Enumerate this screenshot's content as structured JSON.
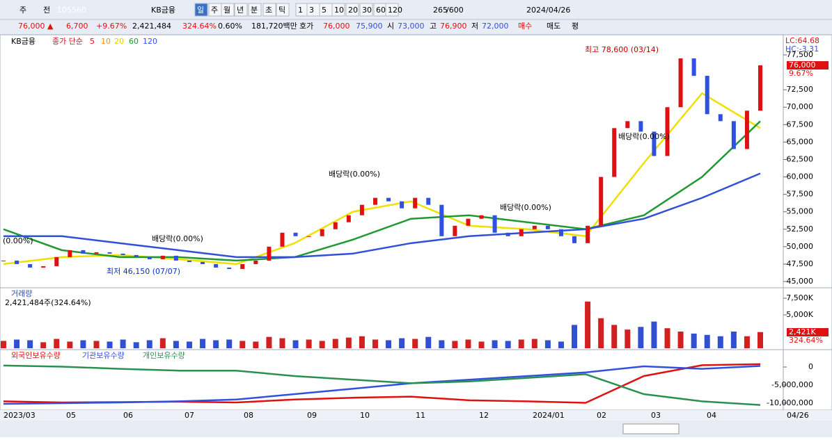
{
  "toolbar": {
    "items": [
      "주",
      "전",
      "105560",
      "KB금융",
      "일",
      "주",
      "월",
      "년",
      "분",
      "초",
      "틱",
      "1",
      "3",
      "5",
      "10",
      "20",
      "30",
      "60",
      "120",
      "265",
      "/600",
      "2024/04/26"
    ]
  },
  "info": {
    "items": [
      "76,000 ▲",
      "6,700",
      "+9.67%",
      "2,421,484",
      "324.64%",
      "0.60%",
      "181,720백만",
      "호가",
      "76,000",
      "75,900",
      "시",
      "73,000",
      "고",
      "76,900",
      "저",
      "72,000",
      "매수",
      "매도",
      "평"
    ]
  },
  "legend": {
    "items": [
      "KB금융",
      "종가 단순",
      "5",
      "10",
      "20",
      "60",
      "120"
    ]
  },
  "chart_data": [
    {
      "type": "candle",
      "name": "price",
      "values": [
        48000,
        47500,
        47000,
        47200,
        48500,
        49500,
        49000,
        49200,
        49000,
        48800,
        48500,
        48200,
        48700,
        48000,
        47800,
        47500,
        47000,
        46800,
        47500,
        48000,
        50000,
        52000,
        51500,
        51500,
        52500,
        53500,
        54500,
        56000,
        57000,
        56500,
        55500,
        57000,
        56000,
        51500,
        53000,
        54000,
        54500,
        52000,
        51500,
        52500,
        53000,
        52500,
        51500,
        50500,
        53000,
        60000,
        67000,
        68000,
        66500,
        63000,
        70000,
        77000,
        74500,
        69000,
        68000,
        64000,
        69500,
        76000
      ],
      "series": [
        {
          "name": "20",
          "color": "#f0e000",
          "values": [
            47500,
            48500,
            48800,
            48200,
            47500,
            50500,
            55000,
            56500,
            53000,
            52500,
            51500,
            62000,
            72000,
            67000
          ]
        },
        {
          "name": "60",
          "color": "#1e9a2e",
          "values": [
            52500,
            49500,
            48500,
            48500,
            48000,
            48500,
            51000,
            54000,
            54500,
            53500,
            52500,
            54500,
            60000,
            68000
          ]
        },
        {
          "name": "120",
          "color": "#3050d8",
          "values": [
            51500,
            51500,
            50500,
            49500,
            48500,
            48500,
            49000,
            50500,
            51500,
            52000,
            52500,
            54000,
            57000,
            60500
          ]
        }
      ],
      "ylim": [
        45000,
        77500
      ],
      "yticks": [
        {
          "value": 45000,
          "label": "45,000"
        },
        {
          "value": 47500,
          "label": "47,500"
        },
        {
          "value": 50000,
          "label": "50,000"
        },
        {
          "value": 52500,
          "label": "52,500"
        },
        {
          "value": 55000,
          "label": "55,000"
        },
        {
          "value": 57500,
          "label": "57,500"
        },
        {
          "value": 60000,
          "label": "60,000"
        },
        {
          "value": 62500,
          "label": "62,500"
        },
        {
          "value": 65000,
          "label": "65,000"
        },
        {
          "value": 67500,
          "label": "67,500"
        },
        {
          "value": 70000,
          "label": "70,000"
        },
        {
          "value": 72500,
          "label": "72,500"
        },
        {
          "value": 77500,
          "label": "77,500"
        }
      ],
      "annotations": [
        "최고 78,600 (03/14)",
        "최저 46,150 (07/07)",
        "배당락(0.00%)",
        "배당락(0.00%)",
        "배당락(0.00%)",
        "배당락(0.00%)",
        "(0.00%)",
        "LC:64.68",
        "HC:-3.31",
        "76,000",
        "9.67%"
      ]
    },
    {
      "type": "bar",
      "title": "거래량",
      "subtitle": "2,421,484주(324.64%)",
      "values": [
        1100,
        1300,
        1200,
        900,
        1400,
        1000,
        1200,
        1100,
        1000,
        1300,
        900,
        1200,
        1500,
        1100,
        1000,
        1400,
        1200,
        1300,
        1100,
        1000,
        1700,
        1500,
        1200,
        1300,
        1100,
        1400,
        1600,
        1800,
        1300,
        1200,
        1500,
        1400,
        1700,
        1200,
        1100,
        1300,
        1000,
        1200,
        1100,
        1300,
        1400,
        1200,
        1000,
        3500,
        7000,
        4500,
        3500,
        2800,
        3200,
        4000,
        3000,
        2500,
        2200,
        2000,
        1800,
        2500,
        1800,
        2421
      ],
      "ylim": [
        0,
        7500
      ],
      "yticks": [
        {
          "value": 7500,
          "label": "7,500K"
        },
        {
          "value": 5000,
          "label": "5,000K"
        }
      ],
      "annotations": [
        "2,421K",
        "324.64%"
      ]
    },
    {
      "type": "line",
      "series": [
        {
          "name": "외국인보유수량",
          "color": "#e01010",
          "values": [
            -9500000,
            -9800000,
            -9700000,
            -9600000,
            -9800000,
            -9000000,
            -8500000,
            -8200000,
            -9200000,
            -9500000,
            -9900000,
            -2500000,
            500000,
            800000
          ]
        },
        {
          "name": "기관보유수량",
          "color": "#3050e0",
          "values": [
            -10200000,
            -10000000,
            -9800000,
            -9500000,
            -9000000,
            -7500000,
            -6000000,
            -4500000,
            -3500000,
            -2500000,
            -1500000,
            200000,
            -500000,
            300000
          ]
        },
        {
          "name": "개인보유수량",
          "color": "#2a9050",
          "values": [
            400000,
            100000,
            -500000,
            -1000000,
            -1000000,
            -2500000,
            -3500000,
            -4500000,
            -4000000,
            -3000000,
            -2000000,
            -7500000,
            -9500000,
            -10500000
          ]
        }
      ],
      "ylim": [
        -11000000,
        1500000
      ],
      "yticks": [
        0,
        {
          "value": -5000000,
          "label": "-5,000,000"
        },
        {
          "value": -10000000,
          "label": "-10,000,000"
        }
      ]
    }
  ],
  "xaxis": {
    "labels": [
      "2023/03",
      "05",
      "06",
      "07",
      "08",
      "09",
      "10",
      "11",
      "12",
      "2024/01",
      "02",
      "03",
      "04",
      "04/26"
    ]
  }
}
